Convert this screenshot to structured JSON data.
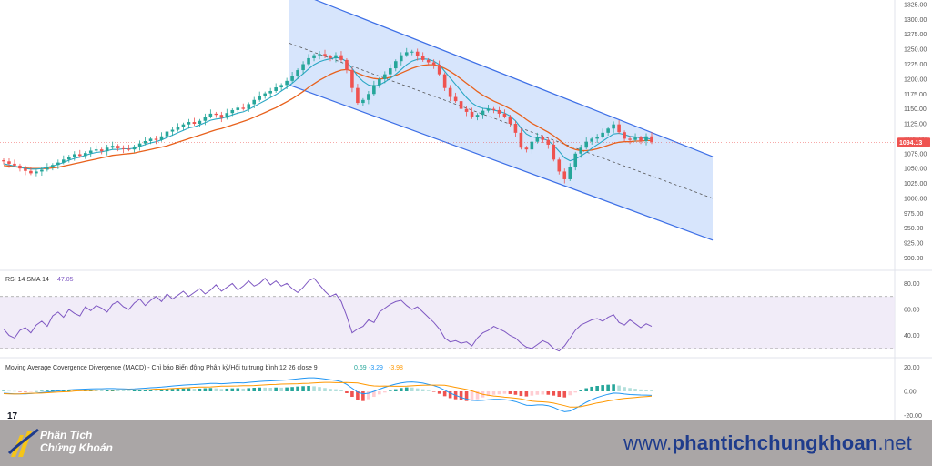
{
  "chart_data": [
    {
      "type": "candlestick",
      "title": "",
      "price_axis_ticks": [
        "1325.00",
        "1300.00",
        "1275.00",
        "1250.00",
        "1225.00",
        "1200.00",
        "1175.00",
        "1150.00",
        "1125.00",
        "1100.00",
        "1075.00",
        "1050.00",
        "1025.00",
        "1000.00",
        "975.00",
        "950.00",
        "925.00",
        "900.00"
      ],
      "ylim": [
        890,
        1328
      ],
      "last_price": "1094.13",
      "last_price_value": 1094.13,
      "bars": 120,
      "closes": [
        1062,
        1058,
        1055,
        1050,
        1046,
        1042,
        1045,
        1048,
        1052,
        1056,
        1060,
        1065,
        1070,
        1074,
        1071,
        1076,
        1080,
        1082,
        1079,
        1085,
        1088,
        1084,
        1083,
        1082,
        1087,
        1092,
        1096,
        1100,
        1098,
        1104,
        1112,
        1115,
        1119,
        1124,
        1128,
        1125,
        1130,
        1137,
        1142,
        1140,
        1135,
        1143,
        1148,
        1152,
        1150,
        1158,
        1165,
        1172,
        1176,
        1180,
        1186,
        1190,
        1197,
        1205,
        1215,
        1225,
        1235,
        1240,
        1242,
        1238,
        1235,
        1240,
        1232,
        1215,
        1185,
        1160,
        1165,
        1175,
        1190,
        1200,
        1208,
        1218,
        1230,
        1240,
        1245,
        1246,
        1238,
        1232,
        1228,
        1224,
        1208,
        1185,
        1170,
        1163,
        1150,
        1145,
        1136,
        1140,
        1147,
        1150,
        1148,
        1142,
        1137,
        1125,
        1110,
        1085,
        1082,
        1095,
        1103,
        1098,
        1090,
        1065,
        1045,
        1032,
        1052,
        1075,
        1085,
        1095,
        1100,
        1103,
        1110,
        1117,
        1124,
        1111,
        1100,
        1098,
        1102,
        1096,
        1104,
        1094
      ],
      "ma_fast": [
        1058,
        1056,
        1054,
        1052,
        1050,
        1049,
        1049,
        1050,
        1052,
        1054,
        1057,
        1060,
        1064,
        1067,
        1069,
        1072,
        1075,
        1077,
        1078,
        1080,
        1082,
        1082,
        1083,
        1083,
        1084,
        1087,
        1090,
        1093,
        1095,
        1098,
        1102,
        1106,
        1110,
        1114,
        1118,
        1120,
        1123,
        1127,
        1131,
        1133,
        1134,
        1137,
        1140,
        1143,
        1145,
        1149,
        1154,
        1159,
        1164,
        1169,
        1174,
        1180,
        1186,
        1193,
        1201,
        1209,
        1217,
        1224,
        1229,
        1232,
        1234,
        1236,
        1235,
        1229,
        1218,
        1205,
        1196,
        1190,
        1188,
        1190,
        1195,
        1201,
        1208,
        1216,
        1224,
        1230,
        1233,
        1234,
        1233,
        1230,
        1224,
        1213,
        1202,
        1191,
        1180,
        1169,
        1160,
        1154,
        1151,
        1150,
        1148,
        1146,
        1143,
        1138,
        1130,
        1118,
        1108,
        1103,
        1102,
        1100,
        1097,
        1089,
        1079,
        1068,
        1063,
        1066,
        1071,
        1077,
        1084,
        1090,
        1096,
        1102,
        1108,
        1109,
        1107,
        1104,
        1103,
        1101,
        1101,
        1099
      ],
      "ma_slow": [
        1055,
        1054,
        1053,
        1052,
        1051,
        1050,
        1050,
        1050,
        1050,
        1051,
        1052,
        1054,
        1056,
        1058,
        1060,
        1062,
        1064,
        1066,
        1068,
        1070,
        1072,
        1073,
        1074,
        1075,
        1076,
        1078,
        1080,
        1082,
        1084,
        1086,
        1088,
        1091,
        1094,
        1097,
        1100,
        1103,
        1106,
        1109,
        1112,
        1115,
        1117,
        1120,
        1123,
        1126,
        1129,
        1132,
        1136,
        1140,
        1144,
        1148,
        1152,
        1157,
        1162,
        1167,
        1173,
        1179,
        1186,
        1192,
        1198,
        1203,
        1208,
        1212,
        1215,
        1216,
        1214,
        1210,
        1206,
        1203,
        1201,
        1200,
        1201,
        1203,
        1206,
        1210,
        1214,
        1218,
        1221,
        1223,
        1224,
        1224,
        1222,
        1218,
        1213,
        1207,
        1200,
        1193,
        1186,
        1179,
        1173,
        1168,
        1163,
        1159,
        1155,
        1150,
        1145,
        1139,
        1132,
        1126,
        1121,
        1116,
        1111,
        1105,
        1098,
        1091,
        1085,
        1082,
        1080,
        1080,
        1081,
        1083,
        1086,
        1089,
        1092,
        1094,
        1095,
        1095,
        1096,
        1096,
        1097,
        1097
      ],
      "channel": {
        "upper": {
          "x1": 0.0,
          "y1": 1350,
          "x2": 1.0,
          "y2": 1070
        },
        "mid": {
          "x1": 0.0,
          "y1": 1260,
          "x2": 1.0,
          "y2": 1000
        },
        "lower": {
          "x1": 0.0,
          "y1": 1190,
          "x2": 1.0,
          "y2": 930
        }
      },
      "colors": {
        "up": "#26a69a",
        "down": "#ef5350",
        "ma_fast": "#2aa7c4",
        "ma_slow": "#e8611c",
        "channel_fill": "#c9dcfb",
        "channel_line": "#3d6fe6",
        "last_price_bg": "#ef5350"
      }
    },
    {
      "type": "line",
      "label": "RSI 14 SMA 14",
      "value": "47.05",
      "ticks": [
        "80.00",
        "60.00",
        "40.00"
      ],
      "ylim": [
        25,
        88
      ],
      "band": [
        30,
        70
      ],
      "values": [
        45,
        40,
        38,
        44,
        46,
        42,
        48,
        51,
        47,
        55,
        58,
        54,
        60,
        57,
        55,
        62,
        59,
        63,
        61,
        58,
        64,
        66,
        62,
        60,
        65,
        68,
        63,
        67,
        70,
        66,
        72,
        68,
        71,
        74,
        70,
        73,
        76,
        72,
        75,
        79,
        74,
        77,
        80,
        75,
        78,
        82,
        78,
        80,
        84,
        79,
        82,
        78,
        80,
        76,
        73,
        77,
        82,
        84,
        79,
        74,
        70,
        72,
        66,
        55,
        42,
        45,
        47,
        52,
        50,
        58,
        61,
        64,
        66,
        67,
        63,
        60,
        62,
        58,
        54,
        50,
        45,
        38,
        35,
        36,
        34,
        35,
        32,
        38,
        42,
        44,
        47,
        45,
        43,
        40,
        38,
        34,
        31,
        30,
        33,
        36,
        34,
        30,
        28,
        32,
        38,
        44,
        48,
        50,
        52,
        53,
        51,
        54,
        56,
        50,
        48,
        52,
        49,
        46,
        49,
        47
      ],
      "color": "#7e57c2",
      "band_fill": "#ede7f6"
    },
    {
      "type": "bar+line",
      "label": "Moving Average Covergence Divergence (MACD) - Chỉ báo Biến động Phân kỳ/Hội tụ trung bình 12 26 close 9",
      "histogram_value": "0.69",
      "macd_value": "-3.29",
      "signal_value": "-3.98",
      "ticks": [
        "20.00",
        "0.00",
        "-20.00"
      ],
      "ylim": [
        -24,
        24
      ],
      "histogram": [
        0.4,
        0.3,
        0.2,
        -0.1,
        -0.3,
        -0.2,
        0.1,
        0.4,
        0.6,
        0.8,
        1,
        1.2,
        1.4,
        1.2,
        1.1,
        1.3,
        1.4,
        1.3,
        1,
        1.2,
        1.3,
        1,
        0.8,
        0.6,
        0.8,
        1.1,
        1.3,
        1.5,
        1.3,
        1.6,
        2,
        2.1,
        2.2,
        2.4,
        2.5,
        2.2,
        2.3,
        2.6,
        2.8,
        2.5,
        2,
        2.3,
        2.5,
        2.6,
        2.3,
        2.7,
        3,
        3.2,
        3.1,
        3,
        3.2,
        3.1,
        3.3,
        3.6,
        4,
        4.3,
        4.5,
        4.2,
        3.6,
        2.8,
        2.1,
        1.8,
        0.8,
        -1.5,
        -4.5,
        -7.5,
        -8,
        -6.5,
        -4.5,
        -2.5,
        -1,
        0.5,
        1.8,
        2.8,
        3.3,
        3.2,
        2.5,
        1.8,
        0.6,
        -0.4,
        -2,
        -4,
        -5.6,
        -6.5,
        -7.5,
        -8,
        -7.8,
        -6.5,
        -5,
        -3.8,
        -2.8,
        -2.4,
        -2,
        -2.2,
        -2.8,
        -3.8,
        -4.2,
        -3.5,
        -2.8,
        -2.6,
        -2.8,
        -3.5,
        -4.5,
        -5,
        -3.2,
        -1,
        1,
        2.6,
        3.8,
        4.5,
        5.2,
        5.5,
        5.8,
        4.8,
        3.6,
        2.8,
        2.2,
        1.6,
        1.2,
        0.7
      ],
      "macd": [
        -1.5,
        -1.8,
        -2,
        -2.1,
        -2,
        -1.8,
        -1.4,
        -1,
        -0.5,
        0,
        0.4,
        0.8,
        1.2,
        1.5,
        1.7,
        1.9,
        2.1,
        2.2,
        2.2,
        2.3,
        2.3,
        2.2,
        2,
        1.9,
        2,
        2.3,
        2.6,
        3,
        3.2,
        3.5,
        4,
        4.4,
        4.8,
        5.2,
        5.5,
        5.6,
        5.9,
        6.2,
        6.5,
        6.5,
        6.3,
        6.6,
        6.9,
        7.1,
        7,
        7.4,
        7.8,
        8.2,
        8.4,
        8.6,
        8.9,
        9.1,
        9.4,
        9.8,
        10.3,
        10.8,
        11.2,
        11.2,
        10.8,
        10.2,
        9.5,
        9,
        8,
        5.8,
        2.6,
        -0.6,
        -2,
        -1.5,
        0,
        1.8,
        3.4,
        4.8,
        6,
        7,
        7.6,
        7.8,
        7.4,
        6.8,
        5.8,
        4.8,
        3.2,
        1,
        -1.4,
        -3.2,
        -5,
        -6.4,
        -7.4,
        -7.6,
        -7.4,
        -7,
        -6.6,
        -6.6,
        -6.8,
        -7.4,
        -8.4,
        -10,
        -11.4,
        -11.6,
        -11.2,
        -11.2,
        -11.8,
        -13.2,
        -15.2,
        -16.8,
        -16.2,
        -14,
        -11.6,
        -9,
        -6.8,
        -5,
        -3.6,
        -2.4,
        -1.4,
        -1.6,
        -2.2,
        -2.6,
        -2.8,
        -3,
        -3.1,
        -3.29
      ],
      "signal": [
        -1.9,
        -2.1,
        -2.2,
        -2,
        -1.7,
        -1.6,
        -1.5,
        -1.4,
        -1.1,
        -0.8,
        -0.6,
        -0.4,
        -0.2,
        0.3,
        0.6,
        0.6,
        0.7,
        0.9,
        1.2,
        1.1,
        1,
        1.2,
        1.2,
        1.3,
        1.2,
        1.2,
        1.3,
        1.5,
        1.9,
        1.9,
        2,
        2.3,
        2.6,
        2.8,
        3,
        3.4,
        3.6,
        3.6,
        3.7,
        4,
        4.3,
        4.3,
        4.4,
        4.5,
        4.7,
        4.7,
        4.8,
        5,
        5.3,
        5.6,
        5.7,
        6,
        6.1,
        6.2,
        6.3,
        6.5,
        6.7,
        7,
        7.2,
        7.4,
        7.4,
        7.2,
        7.2,
        7.3,
        7.1,
        6.9,
        6,
        5,
        4.5,
        4.3,
        4.4,
        4.3,
        4.2,
        4.2,
        4.3,
        4.6,
        4.9,
        5,
        5.2,
        5.2,
        5.2,
        5,
        4.2,
        3.3,
        2.5,
        1.6,
        0.4,
        -1.1,
        -2.4,
        -3.2,
        -3.8,
        -4.2,
        -4.8,
        -5.2,
        -5.6,
        -6.2,
        -7.2,
        -8.1,
        -8.4,
        -8.6,
        -9,
        -9.7,
        -10.7,
        -11.8,
        -13,
        -13,
        -12.6,
        -11.6,
        -10.6,
        -9.5,
        -8.8,
        -7.9,
        -7.2,
        -6.4,
        -5.8,
        -5.4,
        -5,
        -4.6,
        -4.3,
        -3.98
      ],
      "colors": {
        "hist_up_strong": "#26a69a",
        "hist_up_weak": "#b2dfdb",
        "hist_down_strong": "#ef5350",
        "hist_down_weak": "#ffcdd2",
        "macd": "#2196f3",
        "signal": "#ff9800"
      }
    }
  ],
  "branding": {
    "logo_line1": "Phân Tích",
    "logo_line2": "Chứng Khoán",
    "site_prefix": "www.",
    "site_name": "phantichchungkhoan",
    "site_suffix": ".net",
    "tv_mark": "17"
  }
}
